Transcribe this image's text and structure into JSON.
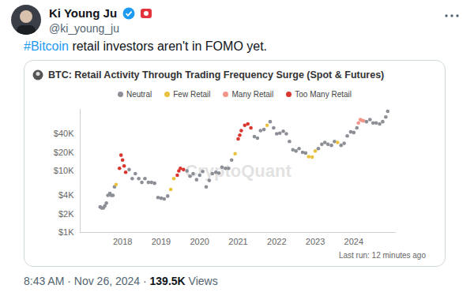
{
  "tweet": {
    "name": "Ki Young Ju",
    "handle": "@ki_young_ju",
    "hashtag": "#Bitcoin",
    "text": "retail investors aren't in FOMO yet.",
    "timestamp": "8:43 AM · Nov 26, 2024",
    "separator": "·",
    "views": "139.5K",
    "views_label": "Views"
  },
  "chart_data": {
    "type": "scatter",
    "title": "BTC: Retail Activity Through Trading Frequency Surge (Spot & Futures)",
    "watermark": "CryptoQuant",
    "footnote": "Last run: 12 minutes ago",
    "log": "y",
    "grid": false,
    "legend": "top",
    "marker": "circle",
    "xlim": [
      2016.9,
      2025.1
    ],
    "xticks": [
      2018,
      2019,
      2020,
      2021,
      2022,
      2023,
      2024
    ],
    "ylim": [
      1000,
      100000
    ],
    "yticks": [
      {
        "value": 1000,
        "label": "$1K"
      },
      {
        "value": 2000,
        "label": "$2K"
      },
      {
        "value": 4000,
        "label": "$4K"
      },
      {
        "value": 10000,
        "label": "$10K"
      },
      {
        "value": 20000,
        "label": "$20K"
      },
      {
        "value": 40000,
        "label": "$40K"
      }
    ],
    "series": [
      {
        "name": "Neutral",
        "color": "#8c8f96",
        "x": [
          2017.42,
          2017.46,
          2017.5,
          2017.54,
          2017.58,
          2017.62,
          2017.67,
          2017.71,
          2017.75,
          2017.79,
          2018.17,
          2018.25,
          2018.33,
          2018.42,
          2018.5,
          2018.58,
          2018.67,
          2018.75,
          2018.83,
          2018.92,
          2019.0,
          2019.08,
          2019.17,
          2019.67,
          2019.75,
          2019.83,
          2019.92,
          2020.0,
          2020.08,
          2020.17,
          2020.25,
          2020.33,
          2020.42,
          2020.5,
          2020.58,
          2020.67,
          2020.75,
          2020.83,
          2021.42,
          2021.5,
          2021.58,
          2021.67,
          2021.83,
          2021.92,
          2022.0,
          2022.08,
          2022.17,
          2022.25,
          2022.33,
          2022.42,
          2022.5,
          2022.58,
          2022.67,
          2022.75,
          2023.08,
          2023.17,
          2023.25,
          2023.33,
          2023.42,
          2023.5,
          2023.67,
          2023.75,
          2023.83,
          2023.92,
          2024.0,
          2024.08,
          2024.33,
          2024.42,
          2024.5,
          2024.58,
          2024.67,
          2024.75,
          2024.83,
          2024.88
        ],
        "values": [
          2600,
          2500,
          2500,
          2700,
          3000,
          4000,
          4300,
          4000,
          4000,
          5500,
          10500,
          7500,
          9000,
          7500,
          6500,
          7500,
          6500,
          6500,
          6300,
          3700,
          3600,
          3500,
          3900,
          10000,
          8200,
          9000,
          7200,
          8500,
          9800,
          5500,
          7000,
          9000,
          9500,
          9200,
          11500,
          11000,
          11000,
          15000,
          36000,
          34000,
          45000,
          47000,
          63000,
          50000,
          40000,
          41000,
          44000,
          40000,
          30000,
          22000,
          21000,
          23000,
          20000,
          19500,
          23000,
          27000,
          29000,
          27000,
          26000,
          30000,
          26000,
          28000,
          37000,
          43000,
          42000,
          50000,
          63000,
          68000,
          60000,
          60000,
          58000,
          63000,
          75000,
          93000
        ]
      },
      {
        "name": "Few Retail",
        "color": "#e9c23f",
        "x": [
          2017.83,
          2019.25,
          2019.33,
          2020.92,
          2021.75,
          2022.83,
          2022.92,
          2023.0,
          2023.58
        ],
        "values": [
          6000,
          5000,
          7500,
          19000,
          55000,
          17000,
          16800,
          21000,
          29000
        ]
      },
      {
        "name": "Many Retail",
        "color": "#f0958a",
        "x": [
          2024.12,
          2024.17,
          2024.21,
          2024.25
        ],
        "values": [
          60000,
          68000,
          66000,
          65000
        ]
      },
      {
        "name": "Too Many Retail",
        "color": "#d9362f",
        "x": [
          2017.92,
          2017.96,
          2018.0,
          2018.04,
          2018.08,
          2019.42,
          2019.46,
          2019.5,
          2019.58,
          2021.0,
          2021.04,
          2021.08,
          2021.17,
          2021.25,
          2021.33
        ],
        "values": [
          11000,
          18000,
          15000,
          12000,
          9500,
          8500,
          10000,
          11000,
          10500,
          33000,
          38000,
          45000,
          55000,
          58000,
          50000
        ]
      }
    ]
  }
}
